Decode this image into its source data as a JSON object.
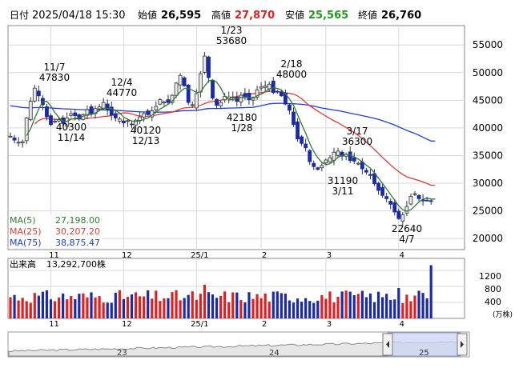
{
  "header": {
    "date_label": "日付",
    "datetime": "2025/04/18 15:30",
    "open_label": "始値",
    "open": "26,595",
    "high_label": "高値",
    "high": "27,870",
    "low_label": "安値",
    "low": "25,565",
    "close_label": "終値",
    "close": "26,760"
  },
  "legend": {
    "ma5": {
      "label": "MA(5)",
      "value": "27,198.00",
      "color": "#2e7d32"
    },
    "ma25": {
      "label": "MA(25)",
      "value": "30,207.20",
      "color": "#e53935"
    },
    "ma75": {
      "label": "MA(75)",
      "value": "38,875.47",
      "color": "#1e3fd8"
    }
  },
  "volume": {
    "label": "出来高",
    "value": "13,292,700株",
    "y_ticks": [
      "1200",
      "800",
      "400"
    ],
    "unit": "(万株)"
  },
  "colors": {
    "up": "#e8e8e8",
    "down": "#1a2aa8",
    "up_stroke": "#333333",
    "vol_up": "#e02020",
    "vol_down": "#1a2aa8"
  },
  "chart_data": {
    "type": "candlestick",
    "y_ticks": [
      55000,
      50000,
      45000,
      40000,
      35000,
      30000,
      25000,
      20000
    ],
    "ylim": [
      18000,
      58500
    ],
    "x_labels": [
      "11",
      "12",
      "25/1",
      "2",
      "3",
      "4"
    ],
    "annotations": [
      {
        "text": [
          "11/7",
          "47830"
        ],
        "date_index": 5
      },
      {
        "text": [
          "40300",
          "11/14"
        ],
        "date_index": 10
      },
      {
        "text": [
          "12/4",
          "44770"
        ],
        "date_index": 23
      },
      {
        "text": [
          "40120",
          "12/13"
        ],
        "date_index": 30
      },
      {
        "text": [
          "1/23",
          "53680"
        ],
        "date_index": 48
      },
      {
        "text": [
          "42180",
          "1/28"
        ],
        "date_index": 51
      },
      {
        "text": [
          "2/18",
          "48000"
        ],
        "date_index": 64
      },
      {
        "text": [
          "3/17",
          "36300"
        ],
        "date_index": 83
      },
      {
        "text": [
          "31190",
          "3/11"
        ],
        "date_index": 79
      },
      {
        "text": [
          "22640",
          "4/7"
        ],
        "date_index": 96
      }
    ],
    "closes": [
      38500,
      37800,
      37400,
      37500,
      41800,
      44800,
      47200,
      45800,
      44200,
      42000,
      40600,
      41200,
      41500,
      40800,
      41800,
      42600,
      42200,
      41600,
      42400,
      43300,
      42600,
      43500,
      43800,
      44600,
      43200,
      42300,
      41800,
      41600,
      40900,
      41300,
      40600,
      41400,
      42000,
      42600,
      42400,
      43100,
      43900,
      45100,
      44700,
      44600,
      45900,
      48100,
      49500,
      47600,
      44600,
      44200,
      46200,
      49800,
      53000,
      49100,
      45400,
      44100,
      44600,
      45700,
      45600,
      45600,
      44800,
      45900,
      45700,
      45100,
      45500,
      46900,
      47400,
      47600,
      47900,
      46400,
      46500,
      45800,
      44300,
      43200,
      40600,
      38000,
      37200,
      36400,
      33900,
      33000,
      32500,
      33200,
      34200,
      34600,
      35600,
      35800,
      34900,
      35200,
      34100,
      34000,
      33600,
      32600,
      32000,
      31400,
      29900,
      28700,
      27800,
      27200,
      26200,
      24800,
      23600,
      24300,
      25800,
      27600,
      28100,
      27200,
      26800,
      26900,
      26700
    ]
  }
}
